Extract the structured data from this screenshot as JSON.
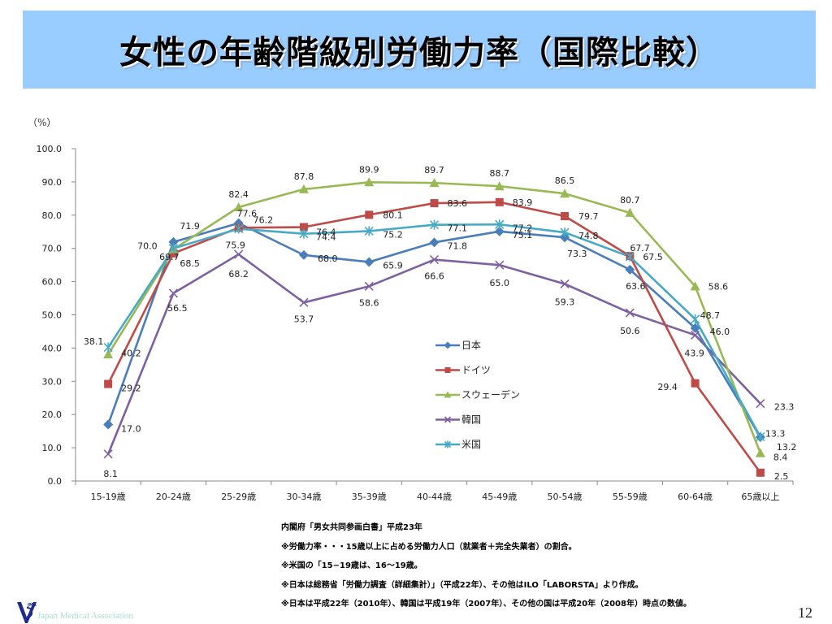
{
  "header": {
    "title": "女性の年齢階級別労働力率（国際比較）"
  },
  "chart_data": {
    "type": "line",
    "title": "女性の年齢階級別労働力率（国際比較）",
    "ylabel": "（%）",
    "xlabel": "",
    "ylim": [
      0,
      100
    ],
    "yticks": [
      "0.0",
      "10.0",
      "20.0",
      "30.0",
      "40.0",
      "50.0",
      "60.0",
      "70.0",
      "80.0",
      "90.0",
      "100.0"
    ],
    "grid": false,
    "legend_position": "center-right",
    "categories": [
      "15-19歳",
      "20-24歳",
      "25-29歳",
      "30-34歳",
      "35-39歳",
      "40-44歳",
      "45-49歳",
      "50-54歳",
      "55-59歳",
      "60-64歳",
      "65歳以上"
    ],
    "series": [
      {
        "name": "日本",
        "color": "#4a7ebb",
        "marker": "diamond",
        "values": [
          17.0,
          71.9,
          77.6,
          68.0,
          65.9,
          71.8,
          75.1,
          73.3,
          63.6,
          46.0,
          13.2
        ]
      },
      {
        "name": "ドイツ",
        "color": "#be4b48",
        "marker": "square",
        "values": [
          29.2,
          68.5,
          76.2,
          76.4,
          80.1,
          83.6,
          83.9,
          79.7,
          67.7,
          29.4,
          2.5
        ]
      },
      {
        "name": "スウェーデン",
        "color": "#98b954",
        "marker": "triangle",
        "values": [
          38.1,
          69.7,
          82.4,
          87.8,
          89.9,
          89.7,
          88.7,
          86.5,
          80.7,
          58.6,
          8.4
        ]
      },
      {
        "name": "韓国",
        "color": "#7d60a0",
        "marker": "x",
        "values": [
          8.1,
          56.5,
          68.2,
          53.7,
          58.6,
          66.6,
          65.0,
          59.3,
          50.6,
          43.9,
          23.3
        ]
      },
      {
        "name": "米国",
        "color": "#46aac5",
        "marker": "asterisk",
        "values": [
          40.2,
          70.0,
          75.9,
          74.4,
          75.2,
          77.1,
          77.2,
          74.8,
          67.5,
          48.7,
          13.3
        ]
      }
    ]
  },
  "notes": [
    "内閣府「男女共同参画白書」平成23年",
    "※労働力率・・・15歳以上に占める労働力人口（就業者＋完全失業者）の割合。",
    "※米国の「15−19歳は、16〜19歳。",
    "※日本は総務省「労働力調査（詳細集計）」（平成22年）、その他はILO「LABORSTA」より作成。",
    "※日本は平成22年（2010年）、韓国は平成19年（2007年）、その他の国は平成20年（2008年）時点の数値。"
  ],
  "footer": {
    "organization": "Japan Medical Association",
    "page_number": "12"
  }
}
